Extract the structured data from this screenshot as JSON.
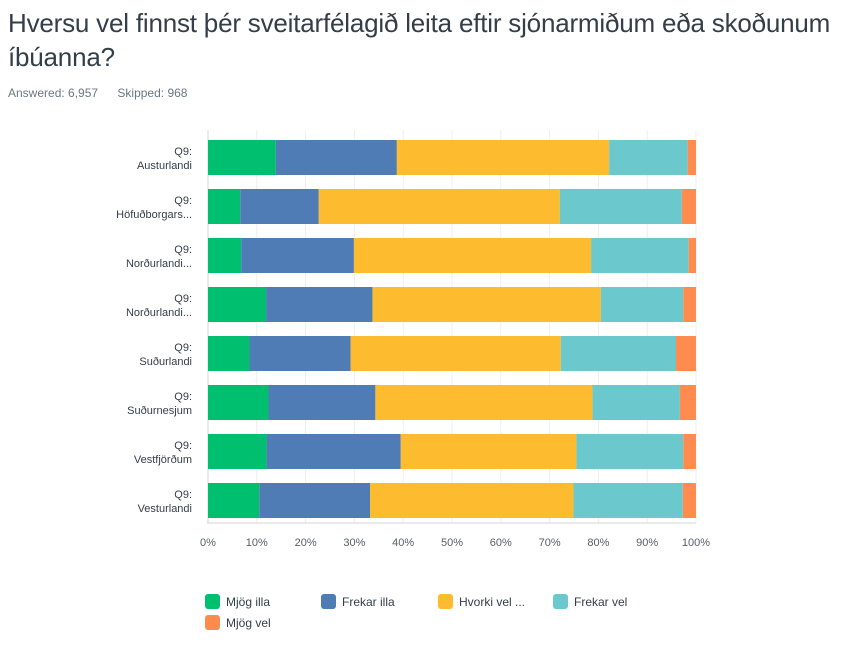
{
  "question": {
    "title": "Hversu vel finnst þér sveitarfélagið leita eftir sjónarmiðum eða skoðunum íbúanna?",
    "answered_label": "Answered: 6,957",
    "skipped_label": "Skipped: 968"
  },
  "chart_data": {
    "type": "bar",
    "orientation": "horizontal",
    "stacked": "percent",
    "title": "Hversu vel finnst þér sveitarfélagið leita eftir sjónarmiðum eða skoðunum íbúanna?",
    "xlabel": "",
    "ylabel": "",
    "xlim": [
      0,
      100
    ],
    "x_ticks": [
      "0%",
      "10%",
      "20%",
      "30%",
      "40%",
      "50%",
      "60%",
      "70%",
      "80%",
      "90%",
      "100%"
    ],
    "grid": true,
    "legend_position": "bottom",
    "categories": [
      [
        "Q9:",
        "Austurlandi"
      ],
      [
        "Q9:",
        "Höfuðborgars..."
      ],
      [
        "Q9:",
        "Norðurlandi..."
      ],
      [
        "Q9:",
        "Norðurlandi..."
      ],
      [
        "Q9:",
        "Suðurlandi"
      ],
      [
        "Q9:",
        "Suðurnesjum"
      ],
      [
        "Q9:",
        "Vestfjörðum"
      ],
      [
        "Q9:",
        "Vesturlandi"
      ]
    ],
    "series": [
      {
        "name": "Mjög illa",
        "color": "#00bf6f",
        "values": [
          13.9,
          6.6,
          6.8,
          11.9,
          8.5,
          12.4,
          12.0,
          10.5
        ]
      },
      {
        "name": "Frekar illa",
        "color": "#507cb6",
        "values": [
          24.8,
          16.1,
          23.1,
          21.8,
          20.7,
          21.9,
          27.5,
          22.7
        ]
      },
      {
        "name": "Hvorki vel ...",
        "color": "#fdbb2f",
        "values": [
          43.5,
          49.4,
          48.6,
          46.8,
          43.1,
          44.5,
          36.0,
          41.7
        ]
      },
      {
        "name": "Frekar vel",
        "color": "#6bc8cd",
        "values": [
          16.1,
          25.0,
          20.0,
          16.9,
          23.6,
          17.9,
          21.9,
          22.4
        ]
      },
      {
        "name": "Mjög vel",
        "color": "#ff8b4f",
        "values": [
          1.7,
          2.9,
          1.5,
          2.6,
          4.1,
          3.3,
          2.6,
          2.7
        ]
      }
    ]
  }
}
